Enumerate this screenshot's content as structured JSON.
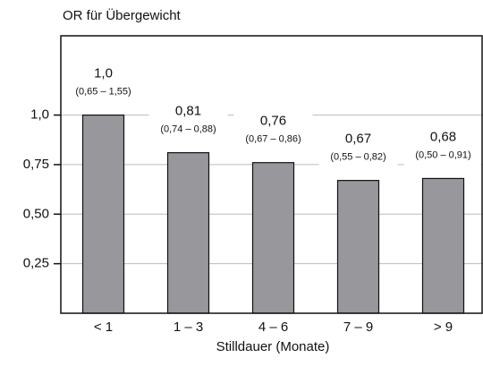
{
  "chart_data": {
    "type": "bar",
    "title": "OR für Übergewicht",
    "x_label": "Stilldauer (Monate)",
    "categories": [
      "< 1",
      "1 – 3",
      "4 – 6",
      "7 – 9",
      "> 9"
    ],
    "values": [
      1.0,
      0.81,
      0.76,
      0.67,
      0.68
    ],
    "value_labels": [
      "1,0",
      "0,81",
      "0,76",
      "0,67",
      "0,68"
    ],
    "ci_labels": [
      "(0,65 – 1,55)",
      "(0,74 – 0,88)",
      "(0,67 – 0,86)",
      "(0,55 – 0,82)",
      "(0,50 – 0,91)"
    ],
    "color": "#98979c",
    "ylim": [
      0,
      1.4
    ],
    "yticks": [
      {
        "value": 0.25,
        "label": "0,25"
      },
      {
        "value": 0.5,
        "label": "0,50"
      },
      {
        "value": 0.75,
        "label": "0,75"
      },
      {
        "value": 1.0,
        "label": "1,0"
      }
    ],
    "grid": true
  }
}
